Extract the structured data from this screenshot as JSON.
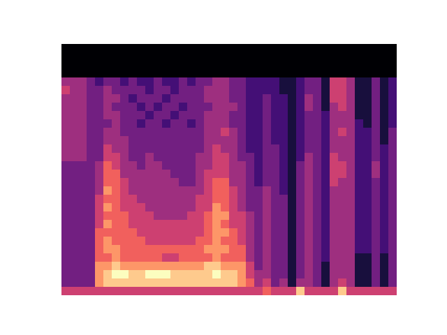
{
  "chart_data": {
    "type": "heatmap",
    "tick_labels": false,
    "color": "magma",
    "zlim": [
      0,
      9
    ],
    "values": [
      [
        0,
        0,
        0,
        0,
        0,
        0,
        0,
        0,
        0,
        0,
        0,
        0,
        0,
        0,
        0,
        0,
        0,
        0,
        0,
        0,
        0,
        0,
        0,
        0,
        0,
        0,
        0,
        0,
        0,
        0,
        0,
        0,
        0,
        0,
        0,
        0,
        0,
        0,
        0,
        0
      ],
      [
        0,
        0,
        0,
        0,
        0,
        0,
        0,
        0,
        0,
        0,
        0,
        0,
        0,
        0,
        0,
        0,
        0,
        0,
        0,
        0,
        0,
        0,
        0,
        0,
        0,
        0,
        0,
        0,
        0,
        0,
        0,
        0,
        0,
        0,
        0,
        0,
        0,
        0,
        0,
        0
      ],
      [
        0,
        0,
        0,
        0,
        0,
        0,
        0,
        0,
        0,
        0,
        0,
        0,
        0,
        0,
        0,
        0,
        0,
        0,
        0,
        0,
        0,
        0,
        0,
        0,
        0,
        0,
        0,
        0,
        0,
        0,
        0,
        0,
        0,
        0,
        0,
        0,
        0,
        0,
        0,
        0
      ],
      [
        0,
        0,
        0,
        0,
        0,
        0,
        0,
        0,
        0,
        0,
        0,
        0,
        0,
        0,
        0,
        0,
        0,
        0,
        0,
        0,
        0,
        0,
        0,
        0,
        0,
        0,
        0,
        0,
        0,
        0,
        0,
        0,
        0,
        0,
        0,
        0,
        0,
        0,
        0,
        0
      ],
      [
        4,
        4,
        4,
        3,
        2,
        3,
        3,
        2,
        3,
        2,
        2,
        3,
        2,
        2,
        3,
        2,
        3,
        3,
        4,
        4,
        3,
        3,
        2,
        2,
        2,
        2,
        1,
        1,
        2,
        3,
        3,
        1,
        5,
        5,
        4,
        1,
        1,
        3,
        1,
        2
      ],
      [
        5,
        4,
        4,
        3,
        3,
        4,
        3,
        3,
        3,
        3,
        2,
        3,
        3,
        2,
        3,
        3,
        3,
        4,
        4,
        4,
        3,
        3,
        2,
        2,
        2,
        2,
        1,
        1,
        2,
        3,
        3,
        1,
        5,
        5,
        4,
        1,
        1,
        3,
        1,
        2
      ],
      [
        4,
        4,
        4,
        3,
        3,
        4,
        4,
        3,
        2,
        3,
        3,
        3,
        2,
        3,
        3,
        3,
        3,
        4,
        4,
        4,
        3,
        3,
        2,
        2,
        3,
        2,
        2,
        1,
        2,
        4,
        3,
        1,
        5,
        5,
        4,
        1,
        1,
        3,
        1,
        2
      ],
      [
        4,
        4,
        4,
        3,
        3,
        4,
        3,
        3,
        3,
        2,
        3,
        2,
        3,
        3,
        2,
        3,
        3,
        3,
        4,
        4,
        4,
        3,
        2,
        2,
        3,
        2,
        2,
        1,
        2,
        4,
        3,
        1,
        4,
        5,
        4,
        1,
        1,
        3,
        1,
        2
      ],
      [
        4,
        4,
        4,
        3,
        3,
        4,
        4,
        3,
        3,
        3,
        2,
        3,
        3,
        2,
        3,
        3,
        3,
        4,
        4,
        4,
        3,
        3,
        2,
        2,
        3,
        2,
        2,
        1,
        2,
        3,
        3,
        2,
        4,
        4,
        4,
        1,
        1,
        3,
        1,
        2
      ],
      [
        4,
        4,
        4,
        3,
        3,
        3,
        4,
        3,
        3,
        2,
        3,
        3,
        2,
        3,
        3,
        2,
        3,
        4,
        4,
        4,
        3,
        3,
        2,
        2,
        3,
        2,
        2,
        1,
        2,
        3,
        3,
        2,
        4,
        4,
        4,
        2,
        1,
        3,
        1,
        2
      ],
      [
        4,
        4,
        4,
        3,
        3,
        4,
        4,
        3,
        3,
        3,
        3,
        3,
        3,
        3,
        3,
        3,
        3,
        4,
        4,
        5,
        4,
        3,
        2,
        2,
        3,
        2,
        2,
        1,
        2,
        3,
        3,
        2,
        4,
        5,
        4,
        2,
        2,
        3,
        1,
        3
      ],
      [
        4,
        4,
        4,
        3,
        3,
        4,
        4,
        4,
        3,
        3,
        3,
        3,
        3,
        3,
        3,
        3,
        3,
        4,
        4,
        4,
        4,
        3,
        2,
        2,
        3,
        2,
        2,
        1,
        2,
        3,
        3,
        2,
        4,
        4,
        4,
        2,
        2,
        3,
        1,
        3
      ],
      [
        4,
        4,
        4,
        3,
        3,
        5,
        4,
        4,
        3,
        3,
        3,
        3,
        3,
        3,
        3,
        3,
        3,
        4,
        5,
        4,
        4,
        3,
        2,
        2,
        3,
        3,
        2,
        1,
        2,
        3,
        3,
        2,
        4,
        4,
        4,
        2,
        2,
        3,
        2,
        3
      ],
      [
        4,
        4,
        4,
        3,
        3,
        5,
        5,
        4,
        3,
        3,
        4,
        3,
        3,
        3,
        3,
        3,
        4,
        4,
        5,
        5,
        4,
        3,
        3,
        2,
        3,
        3,
        2,
        1,
        2,
        4,
        3,
        2,
        5,
        4,
        4,
        2,
        2,
        3,
        2,
        3
      ],
      [
        3,
        3,
        3,
        3,
        4,
        6,
        5,
        4,
        4,
        3,
        4,
        4,
        3,
        3,
        3,
        3,
        4,
        4,
        5,
        5,
        4,
        4,
        3,
        2,
        3,
        3,
        2,
        1,
        3,
        4,
        3,
        2,
        5,
        5,
        4,
        2,
        2,
        4,
        2,
        3
      ],
      [
        3,
        3,
        3,
        3,
        4,
        6,
        6,
        4,
        4,
        4,
        4,
        4,
        4,
        3,
        3,
        3,
        4,
        5,
        5,
        5,
        4,
        4,
        3,
        2,
        3,
        3,
        2,
        1,
        3,
        4,
        3,
        2,
        5,
        5,
        4,
        2,
        2,
        4,
        2,
        3
      ],
      [
        3,
        3,
        3,
        3,
        4,
        6,
        6,
        5,
        4,
        4,
        4,
        4,
        4,
        4,
        3,
        3,
        4,
        5,
        6,
        6,
        4,
        4,
        3,
        2,
        3,
        3,
        2,
        1,
        3,
        4,
        3,
        2,
        5,
        4,
        4,
        2,
        2,
        3,
        2,
        3
      ],
      [
        3,
        3,
        3,
        3,
        4,
        7,
        6,
        5,
        4,
        4,
        4,
        4,
        4,
        4,
        4,
        4,
        4,
        5,
        6,
        6,
        5,
        4,
        3,
        3,
        4,
        3,
        2,
        1,
        3,
        4,
        3,
        2,
        4,
        4,
        4,
        2,
        2,
        3,
        2,
        3
      ],
      [
        3,
        3,
        3,
        3,
        5,
        6,
        6,
        5,
        5,
        4,
        4,
        4,
        4,
        4,
        4,
        4,
        5,
        5,
        6,
        6,
        5,
        4,
        3,
        3,
        4,
        3,
        3,
        1,
        3,
        4,
        3,
        2,
        4,
        4,
        4,
        2,
        2,
        3,
        2,
        3
      ],
      [
        3,
        3,
        3,
        3,
        5,
        7,
        6,
        5,
        5,
        5,
        4,
        4,
        4,
        4,
        4,
        4,
        5,
        5,
        7,
        6,
        5,
        4,
        3,
        3,
        4,
        3,
        3,
        1,
        3,
        4,
        3,
        2,
        4,
        4,
        4,
        2,
        2,
        3,
        2,
        3
      ],
      [
        3,
        3,
        3,
        3,
        5,
        6,
        6,
        6,
        5,
        5,
        5,
        4,
        4,
        4,
        4,
        5,
        5,
        6,
        7,
        7,
        5,
        5,
        4,
        3,
        4,
        3,
        3,
        1,
        3,
        4,
        3,
        2,
        4,
        4,
        4,
        2,
        2,
        3,
        2,
        3
      ],
      [
        3,
        3,
        3,
        3,
        5,
        7,
        6,
        6,
        5,
        5,
        5,
        5,
        5,
        5,
        5,
        5,
        5,
        6,
        7,
        6,
        5,
        5,
        4,
        3,
        4,
        3,
        3,
        1,
        3,
        4,
        3,
        2,
        4,
        4,
        4,
        2,
        2,
        3,
        2,
        3
      ],
      [
        3,
        3,
        3,
        3,
        6,
        6,
        6,
        6,
        6,
        5,
        5,
        5,
        5,
        5,
        5,
        5,
        5,
        6,
        7,
        7,
        6,
        5,
        4,
        3,
        4,
        3,
        3,
        1,
        3,
        4,
        3,
        2,
        4,
        4,
        4,
        2,
        2,
        3,
        2,
        3
      ],
      [
        3,
        3,
        3,
        3,
        6,
        7,
        6,
        6,
        6,
        6,
        5,
        5,
        5,
        5,
        5,
        5,
        6,
        6,
        7,
        6,
        6,
        5,
        4,
        3,
        4,
        3,
        3,
        1,
        3,
        4,
        3,
        2,
        4,
        4,
        4,
        2,
        2,
        3,
        2,
        3
      ],
      [
        3,
        3,
        3,
        3,
        6,
        7,
        7,
        6,
        6,
        6,
        6,
        6,
        6,
        6,
        6,
        6,
        6,
        7,
        7,
        7,
        6,
        6,
        4,
        3,
        4,
        3,
        3,
        1,
        3,
        4,
        3,
        2,
        4,
        4,
        4,
        2,
        2,
        3,
        2,
        3
      ],
      [
        3,
        3,
        3,
        3,
        6,
        6,
        7,
        6,
        6,
        6,
        6,
        6,
        5,
        5,
        6,
        6,
        6,
        6,
        7,
        6,
        6,
        6,
        4,
        3,
        4,
        3,
        3,
        1,
        3,
        4,
        3,
        2,
        4,
        4,
        4,
        1,
        1,
        3,
        1,
        3
      ],
      [
        3,
        3,
        3,
        3,
        7,
        7,
        8,
        7,
        7,
        7,
        7,
        7,
        7,
        7,
        7,
        7,
        7,
        8,
        8,
        7,
        7,
        7,
        5,
        3,
        4,
        3,
        3,
        1,
        3,
        4,
        3,
        1,
        4,
        4,
        4,
        1,
        1,
        3,
        1,
        3
      ],
      [
        3,
        3,
        3,
        3,
        7,
        8,
        9,
        9,
        8,
        8,
        9,
        9,
        9,
        8,
        8,
        8,
        8,
        8,
        9,
        8,
        8,
        7,
        5,
        4,
        4,
        3,
        3,
        1,
        3,
        4,
        3,
        1,
        4,
        4,
        4,
        1,
        1,
        3,
        1,
        3
      ],
      [
        3,
        3,
        3,
        3,
        7,
        8,
        8,
        8,
        8,
        8,
        8,
        8,
        8,
        8,
        8,
        8,
        8,
        8,
        8,
        8,
        8,
        7,
        6,
        4,
        5,
        3,
        4,
        1,
        4,
        4,
        3,
        1,
        4,
        5,
        4,
        1,
        1,
        3,
        1,
        3
      ],
      [
        5,
        5,
        5,
        5,
        5,
        5,
        5,
        5,
        5,
        5,
        5,
        5,
        5,
        5,
        5,
        5,
        5,
        5,
        5,
        5,
        5,
        5,
        5,
        5,
        6,
        5,
        5,
        5,
        8,
        5,
        5,
        5,
        5,
        8,
        5,
        5,
        5,
        5,
        5,
        5
      ]
    ]
  }
}
